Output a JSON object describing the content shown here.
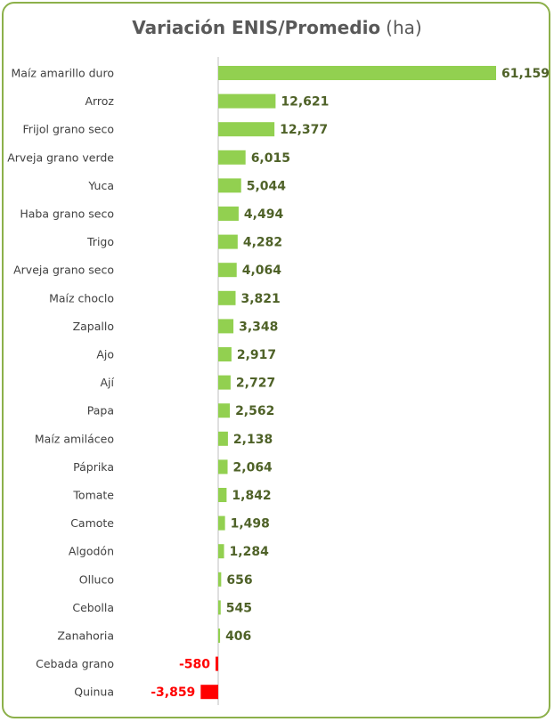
{
  "chart_data": {
    "type": "bar",
    "orientation": "horizontal",
    "title": "Variación ENIS/Promedio",
    "title_unit": "(ha)",
    "categories": [
      "Maíz amarillo duro",
      "Arroz",
      "Frijol grano seco",
      "Arveja grano verde",
      "Yuca",
      "Haba grano seco",
      "Trigo",
      "Arveja grano seco",
      "Maíz choclo",
      "Zapallo",
      "Ajo",
      "Ají",
      "Papa",
      "Maíz amiláceo",
      "Páprika",
      "Tomate",
      "Camote",
      "Algodón",
      "Olluco",
      "Cebolla",
      "Zanahoria",
      "Cebada grano",
      "Quinua"
    ],
    "values": [
      61159,
      12621,
      12377,
      6015,
      5044,
      4494,
      4282,
      4064,
      3821,
      3348,
      2917,
      2727,
      2562,
      2138,
      2064,
      1842,
      1498,
      1284,
      656,
      545,
      406,
      -580,
      -3859
    ],
    "value_labels": [
      "61,159",
      "12,621",
      "12,377",
      "6,015",
      "5,044",
      "4,494",
      "4,282",
      "4,064",
      "3,821",
      "3,348",
      "2,917",
      "2,727",
      "2,562",
      "2,138",
      "2,064",
      "1,842",
      "1,498",
      "1,284",
      "656",
      "545",
      "406",
      "-580",
      "-3,859"
    ],
    "positive_color": "#92d050",
    "negative_color": "#ff0000",
    "positive_label_color": "#4f6228",
    "negative_label_color": "#ff0000",
    "grid": false
  }
}
